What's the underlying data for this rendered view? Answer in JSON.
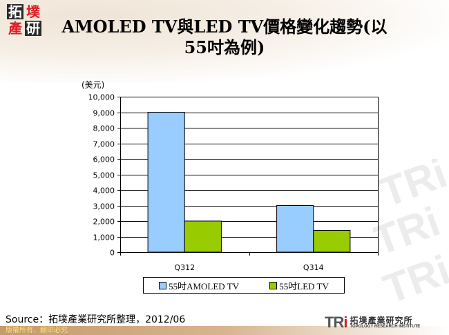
{
  "slide": {
    "title_line1": "AMOLED TV與LED TV價格變化趨勢(以",
    "title_line2": "55吋為例)",
    "source": "Source：拓墣產業研究所整理，2012/06",
    "copyright": "版權所有．翻印必究",
    "logo_chars": [
      "拓",
      "墣",
      "產",
      "研"
    ],
    "tri_logo": {
      "mark": "TR",
      "mark_i": "i",
      "cn": "拓墣產業研究所",
      "en": "TOPOLOGY RESEARCH INSTITUTE"
    }
  },
  "colors": {
    "amoled": "#99CCFF",
    "led": "#99CC00",
    "footer": "#C79A6A",
    "logo_red": "#E01A22"
  },
  "chart_data": {
    "type": "bar",
    "title": "AMOLED TV與LED TV價格變化趨勢(以55吋為例)",
    "xlabel": "",
    "ylabel": "(美元)",
    "ylim": [
      0,
      10000
    ],
    "yticks": [
      "0",
      "1,000",
      "2,000",
      "3,000",
      "4,000",
      "5,000",
      "6,000",
      "7,000",
      "8,000",
      "9,000",
      "10,000"
    ],
    "categories": [
      "Q312",
      "Q314"
    ],
    "series": [
      {
        "name": "55吋AMOLED TV",
        "values": [
          9000,
          3000
        ],
        "color": "#99CCFF"
      },
      {
        "name": "55吋LED TV",
        "values": [
          2000,
          1400
        ],
        "color": "#99CC00"
      }
    ],
    "grid": true,
    "legend_position": "bottom"
  }
}
